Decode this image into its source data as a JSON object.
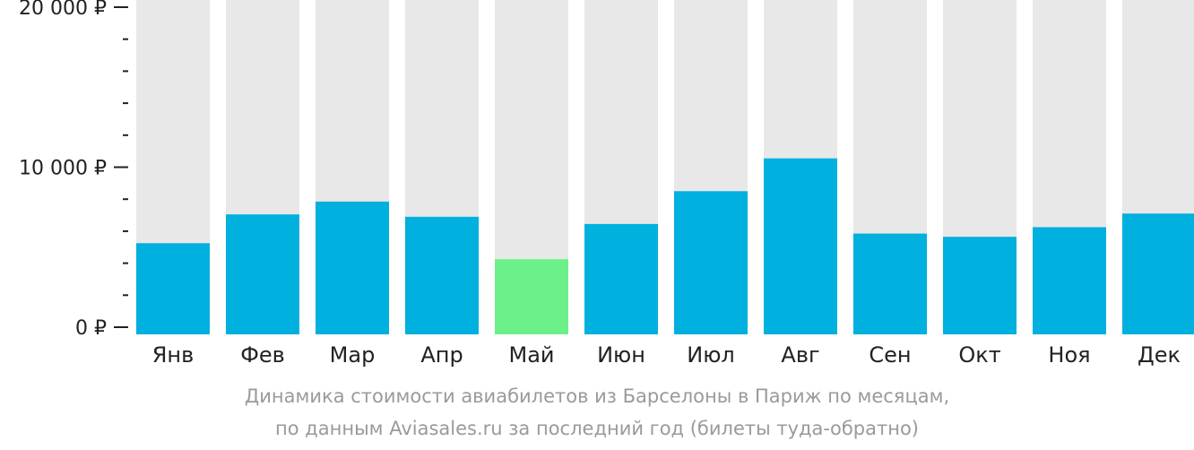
{
  "chart_data": {
    "type": "bar",
    "categories": [
      "Янв",
      "Фев",
      "Мар",
      "Апр",
      "Май",
      "Июн",
      "Июл",
      "Авг",
      "Сен",
      "Окт",
      "Ноя",
      "Дек"
    ],
    "values": [
      5250,
      7050,
      7850,
      6900,
      4250,
      6450,
      8500,
      10550,
      5850,
      5650,
      6250,
      7100
    ],
    "highlight_index": 4,
    "ylim": [
      0,
      20000
    ],
    "yticks": [
      {
        "value": 0,
        "label": "0 ₽"
      },
      {
        "value": 10000,
        "label": "10 000 ₽"
      },
      {
        "value": 20000,
        "label": "20 000 ₽"
      }
    ],
    "minor_tick_step": 2000,
    "colors": {
      "bar": "#00b0de",
      "highlight": "#6cf08a",
      "background_bar": "#e8e8e8",
      "axis": "#222222"
    }
  },
  "caption": {
    "line1": "Динамика стоимости авиабилетов из Барселоны в Париж по месяцам,",
    "line2": "по данным Aviasales.ru за последний год (билеты туда-обратно)"
  }
}
